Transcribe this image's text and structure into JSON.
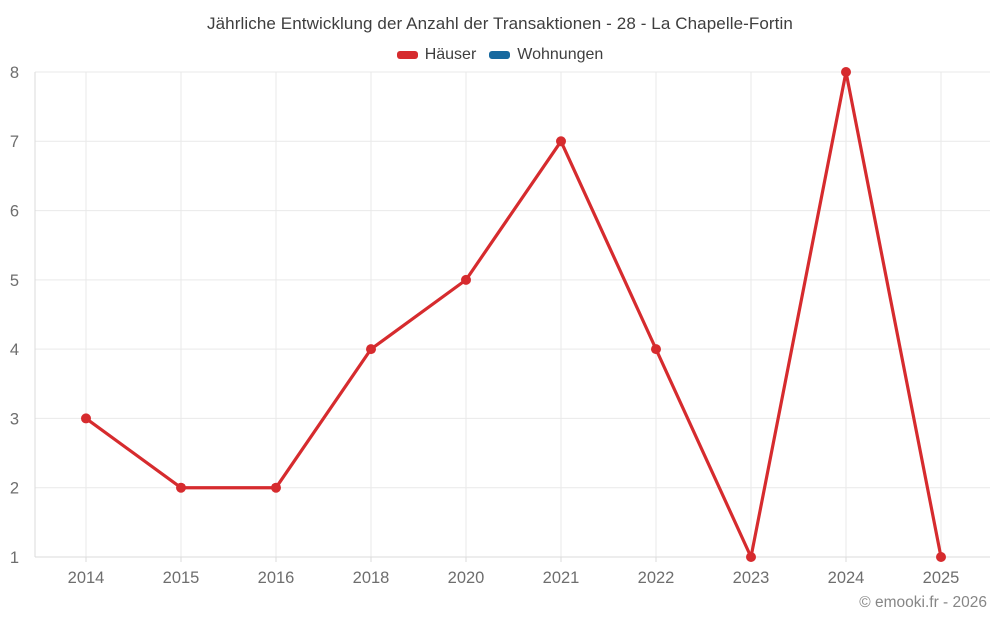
{
  "title": "Jährliche Entwicklung der Anzahl der Transaktionen - 28 - La Chapelle-Fortin",
  "legend": [
    {
      "label": "Häuser",
      "color": "#d62b2e"
    },
    {
      "label": "Wohnungen",
      "color": "#17699f"
    }
  ],
  "footer": "© emooki.fr - 2026",
  "palette": {
    "background": "#ffffff",
    "grid_line": "#e9e9e9",
    "axis_line": "#dbdbdb",
    "tick_label": "#6e6e6e",
    "title_text": "#3e3e3e",
    "footer_text": "#868686"
  },
  "chart_data": {
    "type": "line",
    "title": "Jährliche Entwicklung der Anzahl der Transaktionen - 28 - La Chapelle-Fortin",
    "categories": [
      "2014",
      "2015",
      "2016",
      "2018",
      "2020",
      "2021",
      "2022",
      "2023",
      "2024",
      "2025"
    ],
    "series": [
      {
        "name": "Häuser",
        "color": "#d62b2e",
        "values": [
          3,
          2,
          2,
          4,
          5,
          7,
          4,
          1,
          8,
          1
        ]
      },
      {
        "name": "Wohnungen",
        "color": "#17699f",
        "values": []
      }
    ],
    "xlabel": "",
    "ylabel": "",
    "ylim": [
      1,
      8
    ],
    "yticks": [
      1,
      2,
      3,
      4,
      5,
      6,
      7,
      8
    ],
    "grid": true,
    "legend_position": "top",
    "marker": "circle"
  }
}
